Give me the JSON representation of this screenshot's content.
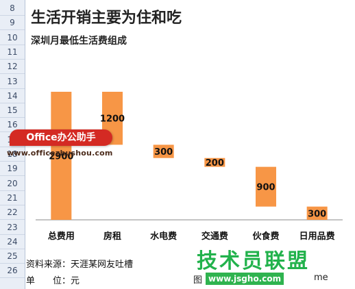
{
  "title": "生活开销主要为住和吃",
  "subtitle": "深圳月最低生活费组成",
  "row_numbers": [
    "8",
    "9",
    "10",
    "11",
    "12",
    "13",
    "14",
    "15",
    "16",
    "17",
    "18",
    "19",
    "20",
    "21",
    "22",
    "23",
    "24",
    "25",
    "26"
  ],
  "footer": {
    "source": "资料来源：天涯某网友吐槽",
    "unit": "单　　位：元"
  },
  "watermarks": {
    "office_badge": "Office办公助手",
    "office_url": "www.officezhushou.com",
    "site_cn": "技术员联盟",
    "site_url": "www.jsgho.com",
    "left_fragment": "图",
    "tail_fragment": "me"
  },
  "colors": {
    "bar": "#f79646",
    "axis": "#888888"
  },
  "chart_data": {
    "type": "bar",
    "subtype": "waterfall",
    "title": "生活开销主要为住和吃",
    "subtitle": "深圳月最低生活费组成",
    "categories": [
      "总费用",
      "房租",
      "水电费",
      "交通费",
      "伙食费",
      "日用品费"
    ],
    "values": [
      2900,
      1200,
      300,
      200,
      900,
      300
    ],
    "bases": [
      0,
      1700,
      1400,
      1200,
      300,
      0
    ],
    "data_labels": [
      "2900",
      "1200",
      "300",
      "200",
      "900",
      "300"
    ],
    "ylim": [
      0,
      2900
    ],
    "grid": false,
    "legend": "none"
  }
}
